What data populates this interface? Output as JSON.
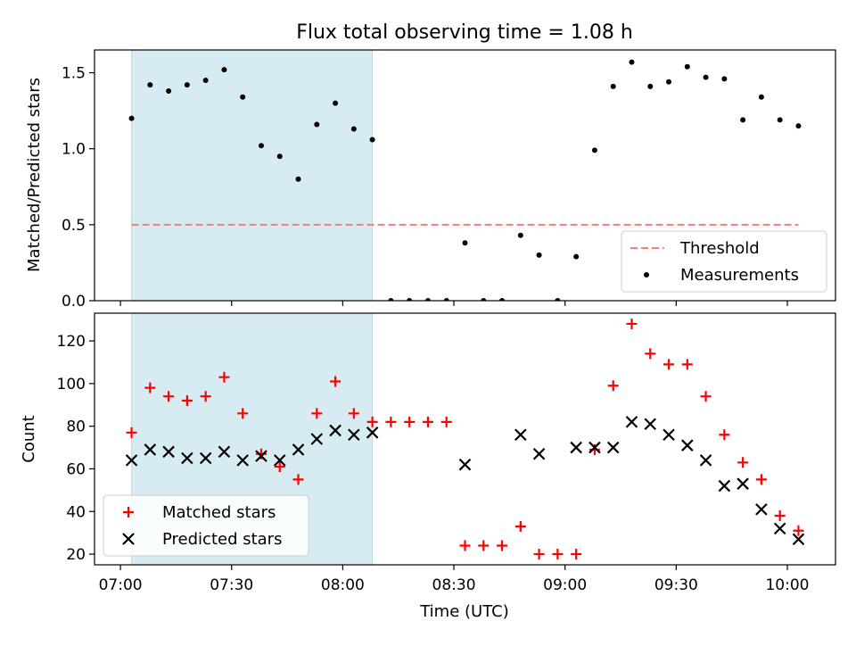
{
  "chart_data": [
    {
      "type": "scatter",
      "title": "Flux total observing time = 1.08 h",
      "xlabel": "",
      "ylabel": "Matched/Predicted stars",
      "ylim": [
        0,
        1.65
      ],
      "yticks": [
        "0.0",
        "0.5",
        "1.0",
        "1.5"
      ],
      "xlim": [
        "06:53",
        "10:13"
      ],
      "shaded_span": {
        "from": "07:03",
        "to": "08:08",
        "color": "#add8e6"
      },
      "legend_position": "lower right",
      "series": [
        {
          "name": "Threshold",
          "style": "dashed-line",
          "color": "#f08080",
          "x": [
            "07:03",
            "10:03"
          ],
          "y": [
            0.5,
            0.5
          ]
        },
        {
          "name": "Measurements",
          "style": "dot",
          "color": "#000000",
          "x": [
            "07:03",
            "07:08",
            "07:13",
            "07:18",
            "07:23",
            "07:28",
            "07:33",
            "07:38",
            "07:43",
            "07:48",
            "07:53",
            "07:58",
            "08:03",
            "08:08",
            "08:13",
            "08:18",
            "08:23",
            "08:28",
            "08:33",
            "08:38",
            "08:43",
            "08:48",
            "08:53",
            "08:58",
            "09:03",
            "09:08",
            "09:13",
            "09:18",
            "09:23",
            "09:28",
            "09:33",
            "09:38",
            "09:43",
            "09:48",
            "09:53",
            "09:58",
            "10:03"
          ],
          "y": [
            1.2,
            1.42,
            1.38,
            1.42,
            1.45,
            1.52,
            1.34,
            1.02,
            0.95,
            0.8,
            1.16,
            1.3,
            1.13,
            1.06,
            0,
            0,
            0,
            0,
            0.38,
            0,
            0,
            0.43,
            0.3,
            0,
            0.29,
            0.99,
            1.41,
            1.57,
            1.41,
            1.44,
            1.54,
            1.47,
            1.46,
            1.19,
            1.34,
            1.19,
            1.15
          ]
        }
      ]
    },
    {
      "type": "scatter",
      "title": "",
      "xlabel": "Time (UTC)",
      "ylabel": "Count",
      "ylim": [
        15,
        133
      ],
      "yticks": [
        "20",
        "40",
        "60",
        "80",
        "100",
        "120"
      ],
      "xlim": [
        "06:53",
        "10:13"
      ],
      "xticks": [
        "07:00",
        "07:30",
        "08:00",
        "08:30",
        "09:00",
        "09:30",
        "10:00"
      ],
      "shaded_span": {
        "from": "07:03",
        "to": "08:08",
        "color": "#add8e6"
      },
      "legend_position": "lower left",
      "series": [
        {
          "name": "Matched stars",
          "marker": "plus",
          "color": "#ff0000",
          "x": [
            "07:03",
            "07:08",
            "07:13",
            "07:18",
            "07:23",
            "07:28",
            "07:33",
            "07:38",
            "07:43",
            "07:48",
            "07:53",
            "07:58",
            "08:03",
            "08:08",
            "08:13",
            "08:18",
            "08:23",
            "08:28",
            "08:33",
            "08:38",
            "08:43",
            "08:48",
            "08:53",
            "08:58",
            "09:03",
            "09:08",
            "09:13",
            "09:18",
            "09:23",
            "09:28",
            "09:33",
            "09:38",
            "09:43",
            "09:48",
            "09:53",
            "09:58",
            "10:03"
          ],
          "y": [
            77,
            98,
            94,
            92,
            94,
            103,
            86,
            67,
            61,
            55,
            86,
            101,
            86,
            82,
            82,
            82,
            82,
            82,
            24,
            24,
            24,
            33,
            20,
            20,
            20,
            69,
            99,
            128,
            114,
            109,
            109,
            94,
            76,
            63,
            55,
            38,
            31
          ]
        },
        {
          "name": "Predicted stars",
          "marker": "x",
          "color": "#000000",
          "x": [
            "07:03",
            "07:08",
            "07:13",
            "07:18",
            "07:23",
            "07:28",
            "07:33",
            "07:38",
            "07:43",
            "07:48",
            "07:53",
            "07:58",
            "08:03",
            "08:08",
            "08:33",
            "08:48",
            "08:53",
            "09:03",
            "09:08",
            "09:13",
            "09:18",
            "09:23",
            "09:28",
            "09:33",
            "09:38",
            "09:43",
            "09:48",
            "09:53",
            "09:58",
            "10:03"
          ],
          "y": [
            64,
            69,
            68,
            65,
            65,
            68,
            64,
            66,
            64,
            69,
            74,
            78,
            76,
            77,
            62,
            76,
            67,
            70,
            70,
            70,
            82,
            81,
            76,
            71,
            64,
            52,
            53,
            41,
            32,
            27
          ]
        }
      ]
    }
  ]
}
